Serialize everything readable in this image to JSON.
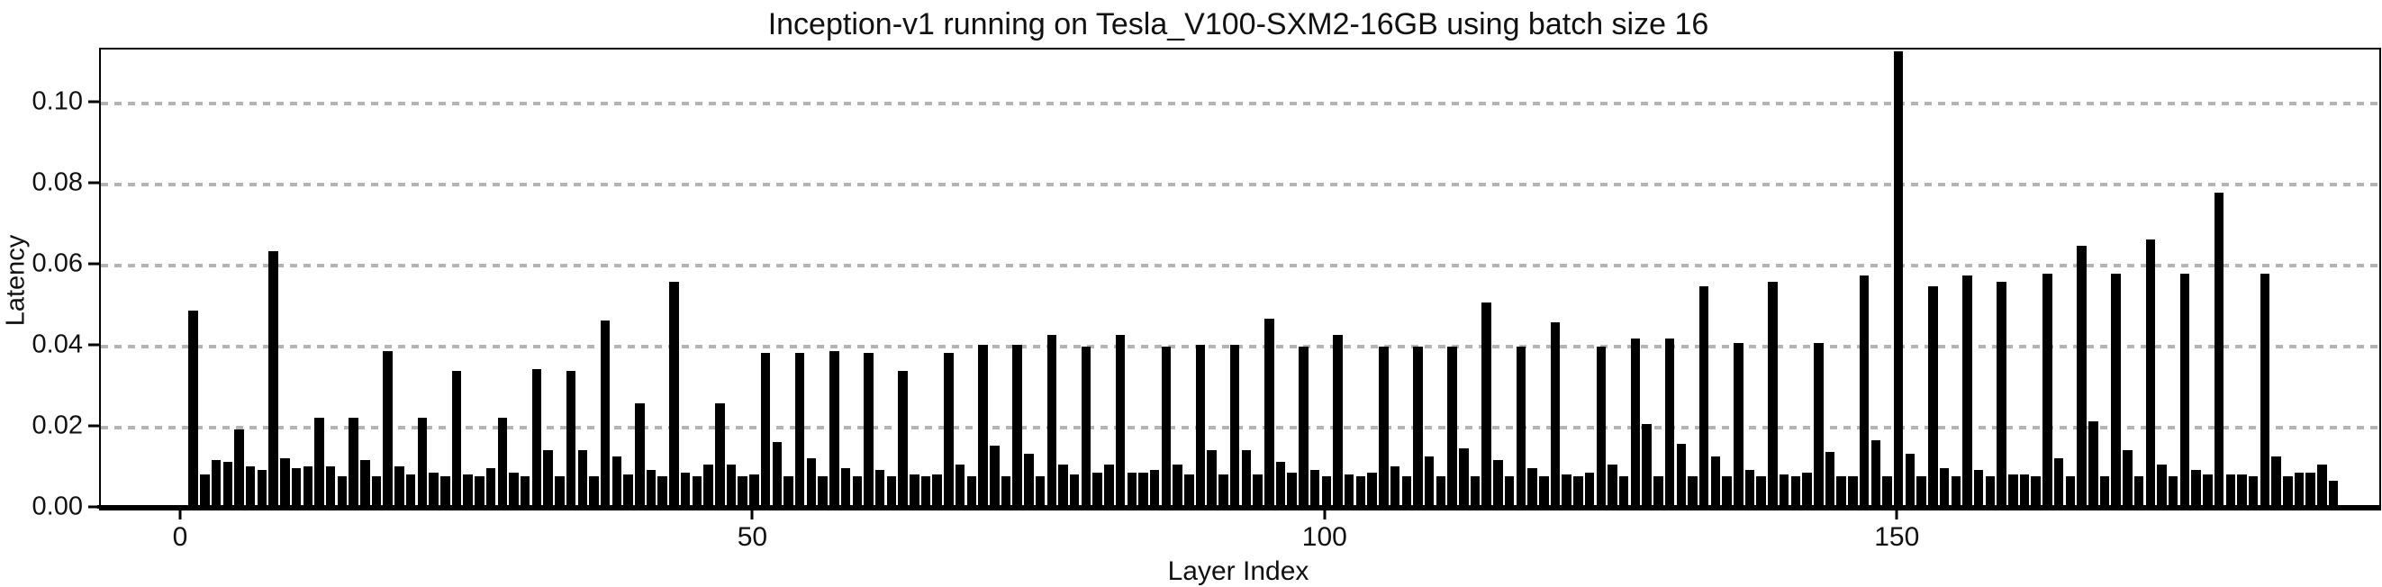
{
  "title": "Inception-v1 running on Tesla_V100-SXM2-16GB using batch size 16",
  "chart_data": {
    "type": "bar",
    "title": "Inception-v1 running on Tesla_V100-SXM2-16GB using batch size 16",
    "xlabel": "Layer Index",
    "ylabel": "Latency",
    "bar_color": "#000000",
    "grid_color": "#b4b4b4",
    "grid": "horizontal-dashed",
    "legend_position": "none",
    "x_first_layer_index": 1,
    "x_ticks": [
      0,
      50,
      100,
      150
    ],
    "y_ticks": [
      0.0,
      0.02,
      0.04,
      0.06,
      0.08,
      0.1
    ],
    "xlim": [
      -7.08,
      192.0
    ],
    "ylim": [
      0,
      0.1134
    ],
    "values": [
      0.049,
      0.0085,
      0.012,
      0.0115,
      0.0195,
      0.0105,
      0.0095,
      0.0635,
      0.0125,
      0.01,
      0.0105,
      0.0225,
      0.0105,
      0.008,
      0.0225,
      0.012,
      0.008,
      0.039,
      0.0105,
      0.0085,
      0.0225,
      0.009,
      0.008,
      0.034,
      0.0085,
      0.008,
      0.01,
      0.0225,
      0.009,
      0.008,
      0.0345,
      0.0145,
      0.008,
      0.034,
      0.0145,
      0.008,
      0.0465,
      0.013,
      0.0085,
      0.026,
      0.0095,
      0.008,
      0.056,
      0.009,
      0.008,
      0.011,
      0.026,
      0.011,
      0.008,
      0.0085,
      0.0385,
      0.0165,
      0.008,
      0.0385,
      0.0125,
      0.008,
      0.039,
      0.01,
      0.008,
      0.0385,
      0.0095,
      0.008,
      0.034,
      0.0085,
      0.008,
      0.0085,
      0.0385,
      0.011,
      0.008,
      0.0405,
      0.0155,
      0.008,
      0.0405,
      0.0135,
      0.008,
      0.043,
      0.011,
      0.0085,
      0.04,
      0.009,
      0.011,
      0.043,
      0.009,
      0.009,
      0.0095,
      0.04,
      0.011,
      0.0085,
      0.0405,
      0.0145,
      0.0085,
      0.0405,
      0.0145,
      0.0085,
      0.047,
      0.0115,
      0.009,
      0.04,
      0.0095,
      0.008,
      0.043,
      0.0085,
      0.008,
      0.009,
      0.04,
      0.0105,
      0.008,
      0.04,
      0.013,
      0.008,
      0.04,
      0.015,
      0.008,
      0.051,
      0.012,
      0.008,
      0.04,
      0.01,
      0.008,
      0.046,
      0.0085,
      0.008,
      0.009,
      0.04,
      0.011,
      0.008,
      0.042,
      0.021,
      0.008,
      0.042,
      0.016,
      0.008,
      0.055,
      0.013,
      0.008,
      0.041,
      0.0095,
      0.008,
      0.056,
      0.0085,
      0.008,
      0.009,
      0.041,
      0.014,
      0.008,
      0.008,
      0.0575,
      0.017,
      0.008,
      0.113,
      0.0135,
      0.008,
      0.055,
      0.01,
      0.008,
      0.0575,
      0.0095,
      0.008,
      0.056,
      0.0085,
      0.0085,
      0.008,
      0.058,
      0.0125,
      0.008,
      0.065,
      0.0215,
      0.008,
      0.058,
      0.0145,
      0.008,
      0.0665,
      0.011,
      0.008,
      0.058,
      0.0095,
      0.0085,
      0.078,
      0.0085,
      0.0085,
      0.008,
      0.058,
      0.013,
      0.008,
      0.009,
      0.009,
      0.011,
      0.007
    ]
  }
}
